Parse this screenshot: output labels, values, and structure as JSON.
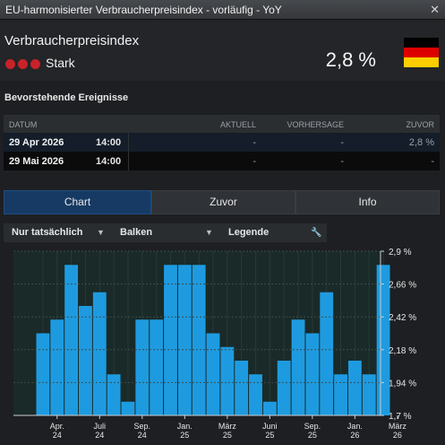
{
  "window": {
    "title": "EU-harmonisierter Verbraucherpreisindex - vorläufig - YoY",
    "close_glyph": "✕"
  },
  "indicator": {
    "name": "Verbraucherpreisindex",
    "importance": "Stark",
    "value": "2,8 %",
    "importance_color": "#c8222a"
  },
  "flag": {
    "country": "Germany",
    "colors": [
      "#000000",
      "#dd0000",
      "#ffce00"
    ]
  },
  "events": {
    "title": "Bevorstehende Ereignisse",
    "columns": {
      "date": "DATUM",
      "actual": "AKTUELL",
      "forecast": "VORHERSAGE",
      "previous": "ZUVOR"
    },
    "rows": [
      {
        "date": "29 Apr 2026",
        "time": "14:00",
        "actual": "-",
        "forecast": "-",
        "previous": "2,8 %"
      },
      {
        "date": "29 Mai 2026",
        "time": "14:00",
        "actual": "-",
        "forecast": "-",
        "previous": "-"
      }
    ]
  },
  "tabs": [
    {
      "label": "Chart",
      "active": true
    },
    {
      "label": "Zuvor",
      "active": false
    },
    {
      "label": "Info",
      "active": false
    }
  ],
  "toolbar": {
    "filter": "Nur tatsächlich",
    "type": "Balken",
    "legend": "Legende",
    "caret_glyph": "▼",
    "tool_glyph": "🔧"
  },
  "chart_data": {
    "type": "bar",
    "y_tick_labels": [
      "2,9 %",
      "2,66 %",
      "2,42 %",
      "2,18 %",
      "1,94 %",
      "1,7 %"
    ],
    "ylim": [
      1.7,
      2.9
    ],
    "x_tick_labels": [
      {
        "month": "Apr.",
        "year": "24"
      },
      {
        "month": "Juli",
        "year": "24"
      },
      {
        "month": "Sep.",
        "year": "24"
      },
      {
        "month": "Jan.",
        "year": "25"
      },
      {
        "month": "März",
        "year": "25"
      },
      {
        "month": "Juni",
        "year": "25"
      },
      {
        "month": "Sep.",
        "year": "25"
      },
      {
        "month": "Jan.",
        "year": "26"
      },
      {
        "month": "März",
        "year": "26"
      }
    ],
    "x_tick_bar_index": [
      1,
      4,
      7,
      10,
      13,
      16,
      19,
      22,
      25
    ],
    "values": [
      2.3,
      2.4,
      2.8,
      2.5,
      2.6,
      2.0,
      1.8,
      2.4,
      2.4,
      2.8,
      2.8,
      2.8,
      2.3,
      2.2,
      2.1,
      2.0,
      1.8,
      2.1,
      2.4,
      2.3,
      2.6,
      2.0,
      2.1,
      2.0,
      2.8
    ],
    "bar_color": "#1e9be0",
    "plot_bg": "#1a2a28",
    "grid": true
  }
}
